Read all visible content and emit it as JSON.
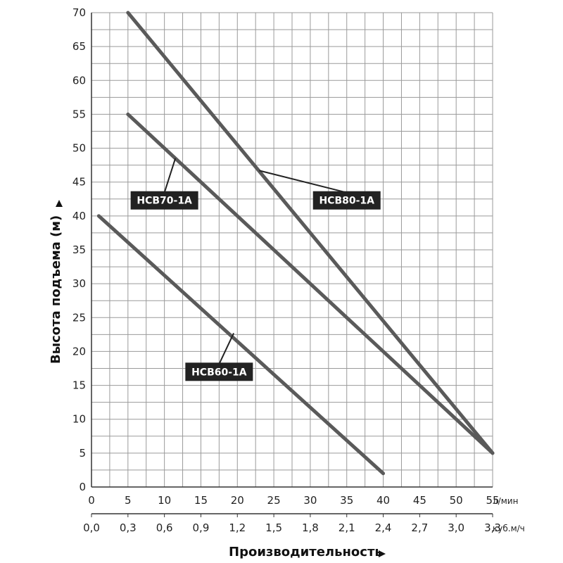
{
  "chart_data": {
    "type": "line",
    "ylabel": "Высота подъема (м)",
    "xlabel": "Производительность",
    "x_unit": "л/мин",
    "x2_unit": "куб.м/ч",
    "xlim": [
      0,
      55
    ],
    "ylim": [
      0,
      70
    ],
    "grid": true,
    "x_ticks": [
      "0",
      "5",
      "10",
      "15",
      "20",
      "25",
      "30",
      "35",
      "40",
      "45",
      "50",
      "55"
    ],
    "x2_ticks": [
      "0,0",
      "0,3",
      "0,6",
      "0,9",
      "1,2",
      "1,5",
      "1,8",
      "2,1",
      "2,4",
      "2,7",
      "3,0",
      "3,3"
    ],
    "y_ticks": [
      "0",
      "5",
      "10",
      "15",
      "20",
      "25",
      "30",
      "35",
      "40",
      "45",
      "50",
      "55",
      "60",
      "65",
      "70"
    ],
    "series": [
      {
        "name": "HCB80-1A",
        "x": [
          5,
          55
        ],
        "y": [
          70,
          5
        ]
      },
      {
        "name": "HCB70-1A",
        "x": [
          5,
          55
        ],
        "y": [
          55,
          5
        ]
      },
      {
        "name": "HCB60-1A",
        "x": [
          1,
          40
        ],
        "y": [
          40,
          2
        ]
      }
    ],
    "callouts": [
      {
        "series": 0,
        "anchor_x": 23,
        "anchor_y": 46.7,
        "box_x": 35,
        "box_y": 42.3
      },
      {
        "series": 1,
        "anchor_x": 11.5,
        "anchor_y": 48.5,
        "box_x": 10,
        "box_y": 42.3
      },
      {
        "series": 2,
        "anchor_x": 19.5,
        "anchor_y": 22.7,
        "box_x": 17.5,
        "box_y": 17
      }
    ]
  }
}
